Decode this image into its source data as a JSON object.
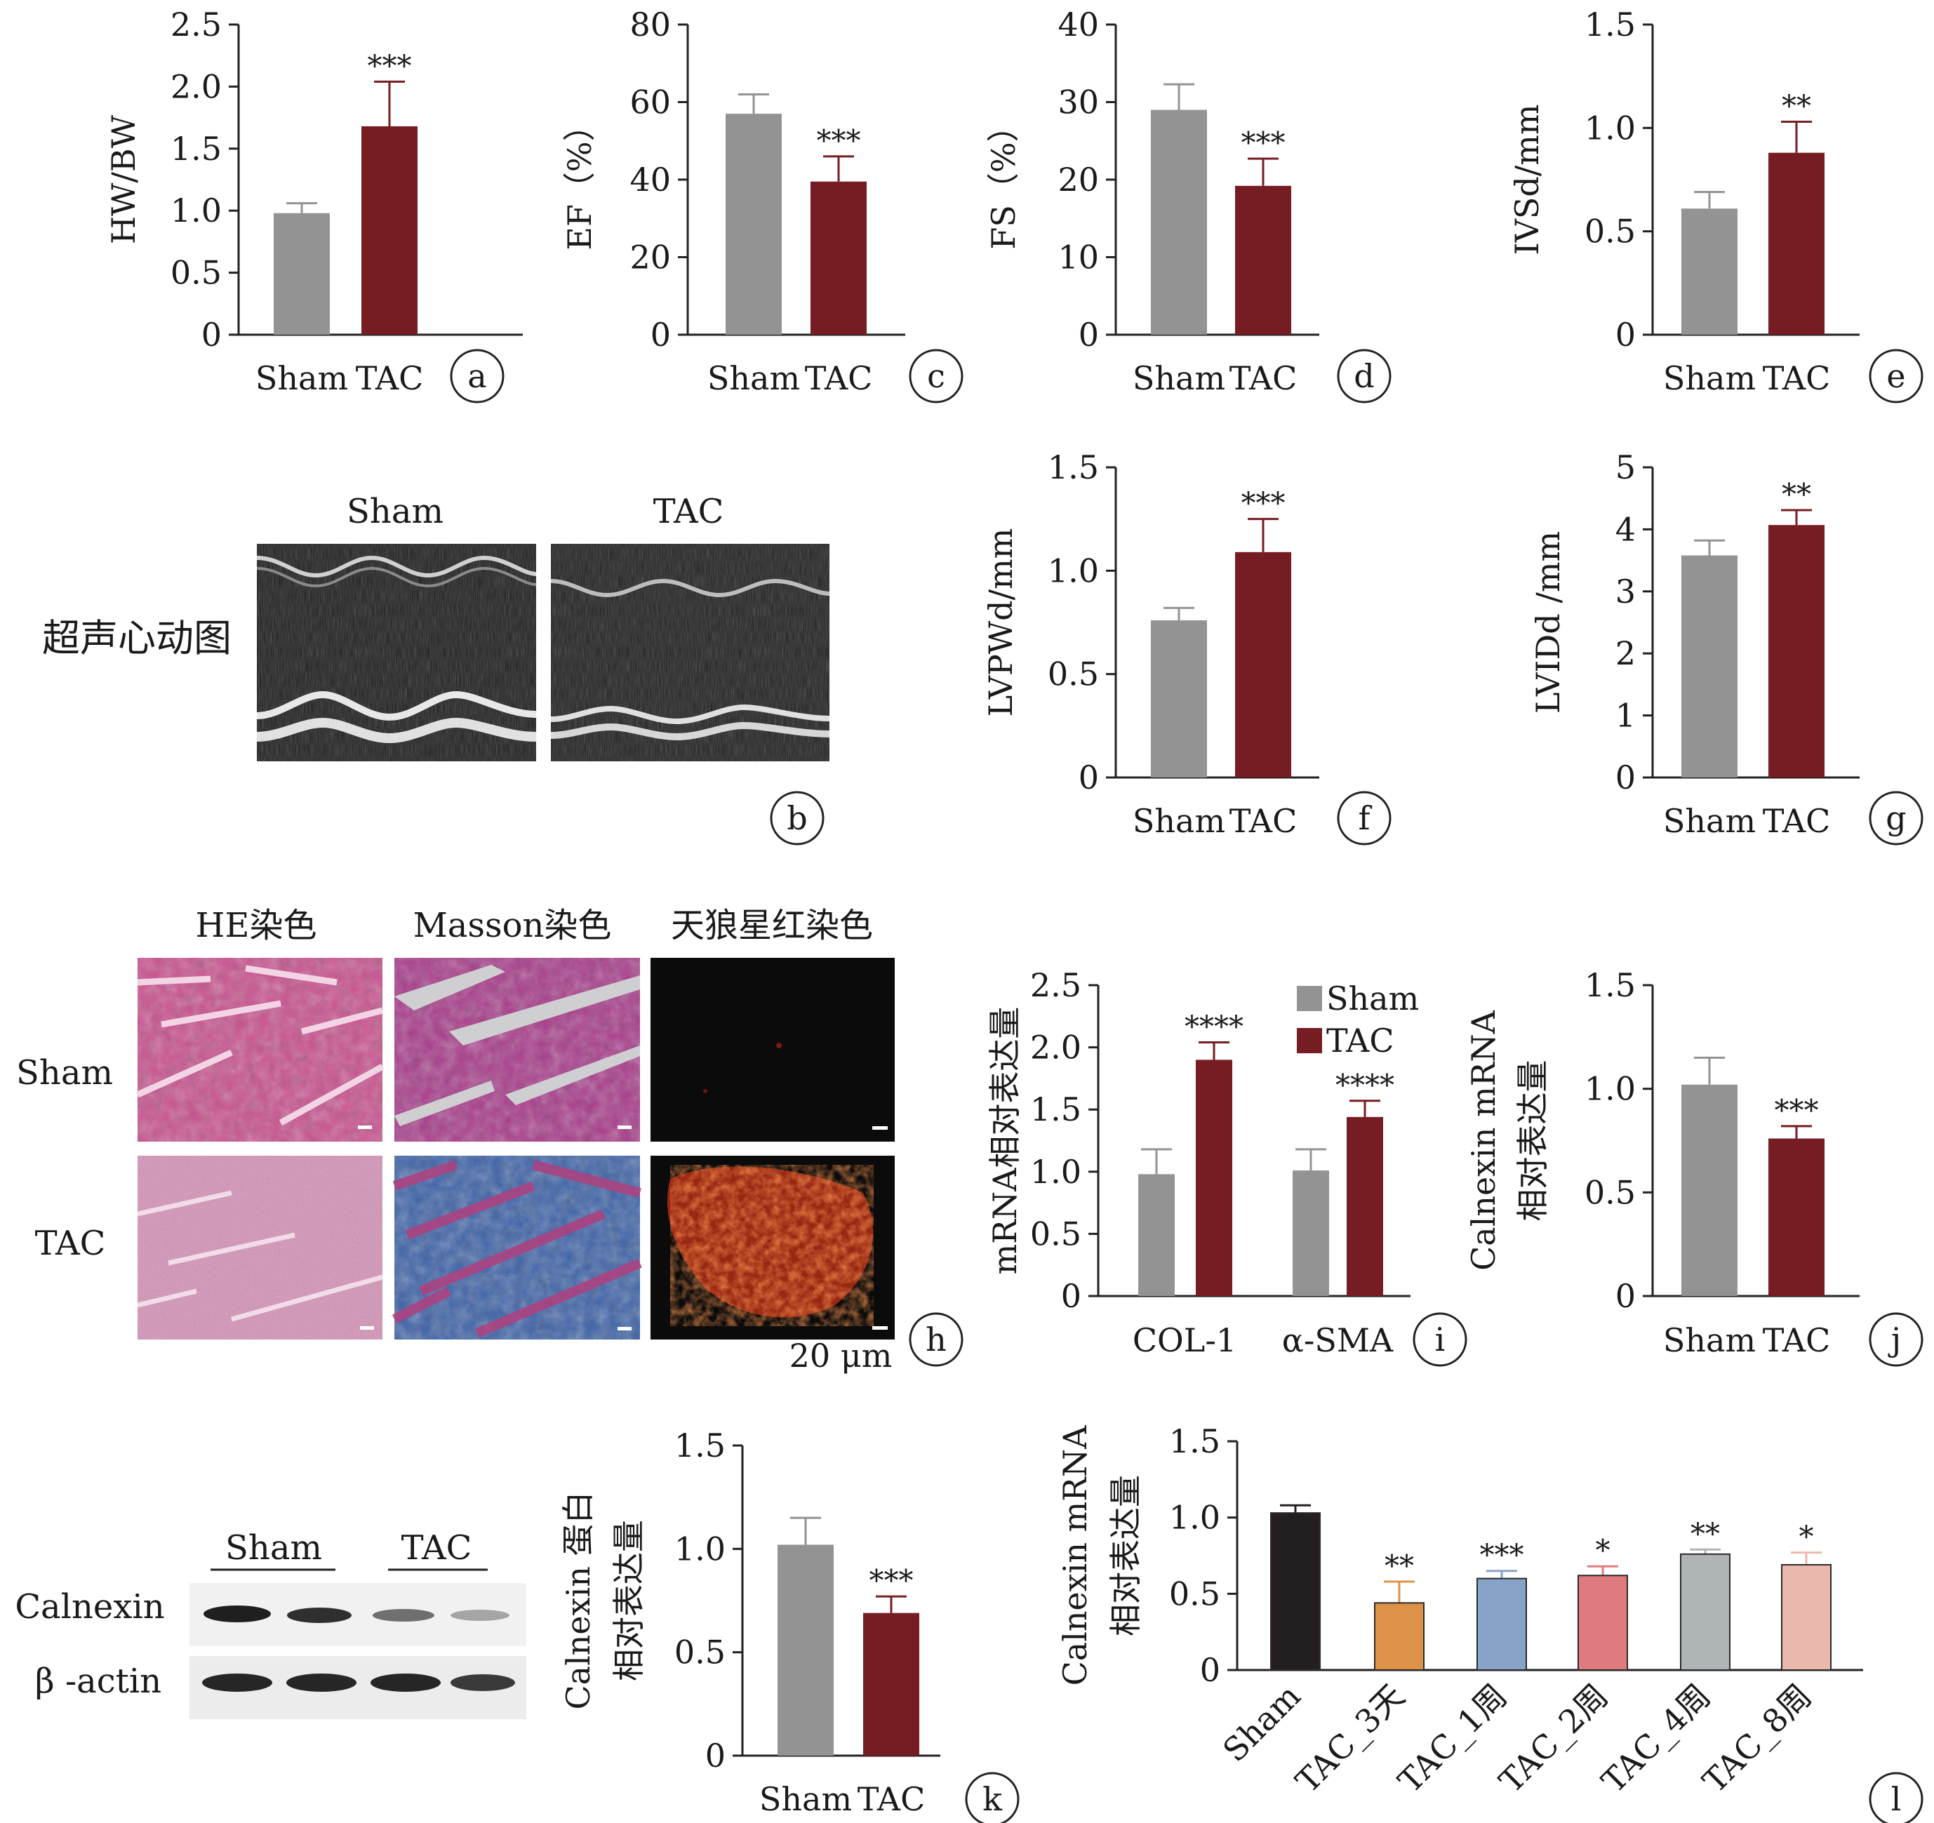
{
  "colors": {
    "sham": "#939393",
    "tac": "#761d23",
    "axis": "#222222",
    "series_l": [
      "#231f20",
      "#dd9248",
      "#87a3c8",
      "#df7b80",
      "#afb4b7",
      "#ebb8ad"
    ]
  },
  "chart_data": [
    {
      "id": "a",
      "type": "bar",
      "panel_label": "a",
      "categories": [
        "Sham",
        "TAC"
      ],
      "values": [
        0.98,
        1.68
      ],
      "errors": [
        0.08,
        0.36
      ],
      "significance": [
        "",
        "***"
      ],
      "ylabel": "HW/BW",
      "ylim": [
        0,
        2.5
      ],
      "yticks": [
        0,
        0.5,
        1.0,
        1.5,
        2.0,
        2.5
      ],
      "ytick_labels": [
        "0",
        "0.5",
        "1.0",
        "1.5",
        "2.0",
        "2.5"
      ]
    },
    {
      "id": "c",
      "type": "bar",
      "panel_label": "c",
      "categories": [
        "Sham",
        "TAC"
      ],
      "values": [
        57,
        39.5
      ],
      "errors": [
        5,
        6.5
      ],
      "significance": [
        "",
        "***"
      ],
      "ylabel": "EF（%）",
      "ylim": [
        0,
        80
      ],
      "yticks": [
        0,
        20,
        40,
        60,
        80
      ],
      "ytick_labels": [
        "0",
        "20",
        "40",
        "60",
        "80"
      ]
    },
    {
      "id": "d",
      "type": "bar",
      "panel_label": "d",
      "categories": [
        "Sham",
        "TAC"
      ],
      "values": [
        29,
        19.2
      ],
      "errors": [
        3.3,
        3.5
      ],
      "significance": [
        "",
        "***"
      ],
      "ylabel": "FS（%）",
      "ylim": [
        0,
        40
      ],
      "yticks": [
        0,
        10,
        20,
        30,
        40
      ],
      "ytick_labels": [
        "0",
        "10",
        "20",
        "30",
        "40"
      ]
    },
    {
      "id": "e",
      "type": "bar",
      "panel_label": "e",
      "categories": [
        "Sham",
        "TAC"
      ],
      "values": [
        0.61,
        0.88
      ],
      "errors": [
        0.08,
        0.15
      ],
      "significance": [
        "",
        "**"
      ],
      "ylabel": "IVSd/mm",
      "ylim": [
        0,
        1.5
      ],
      "yticks": [
        0,
        0.5,
        1.0,
        1.5
      ],
      "ytick_labels": [
        "0",
        "0.5",
        "1.0",
        "1.5"
      ]
    },
    {
      "id": "f",
      "type": "bar",
      "panel_label": "f",
      "categories": [
        "Sham",
        "TAC"
      ],
      "values": [
        0.76,
        1.09
      ],
      "errors": [
        0.06,
        0.16
      ],
      "significance": [
        "",
        "***"
      ],
      "ylabel": "LVPWd/mm",
      "ylim": [
        0,
        1.5
      ],
      "yticks": [
        0,
        0.5,
        1.0,
        1.5
      ],
      "ytick_labels": [
        "0",
        "0.5",
        "1.0",
        "1.5"
      ]
    },
    {
      "id": "g",
      "type": "bar",
      "panel_label": "g",
      "categories": [
        "Sham",
        "TAC"
      ],
      "values": [
        3.58,
        4.07
      ],
      "errors": [
        0.24,
        0.24
      ],
      "significance": [
        "",
        "**"
      ],
      "ylabel": "LVIDd /mm",
      "ylim": [
        0,
        5
      ],
      "yticks": [
        0,
        1,
        2,
        3,
        4,
        5
      ],
      "ytick_labels": [
        "0",
        "1",
        "2",
        "3",
        "4",
        "5"
      ]
    },
    {
      "id": "i",
      "type": "bar",
      "panel_label": "i",
      "categories": [
        "COL-1",
        "α-SMA"
      ],
      "series": [
        {
          "name": "Sham",
          "values": [
            0.98,
            1.01
          ],
          "errors": [
            0.2,
            0.17
          ],
          "significance": [
            "",
            ""
          ]
        },
        {
          "name": "TAC",
          "values": [
            1.9,
            1.44
          ],
          "errors": [
            0.14,
            0.13
          ],
          "significance": [
            "****",
            "****"
          ]
        }
      ],
      "ylabel": "mRNA相对表达量",
      "ylim": [
        0,
        2.5
      ],
      "yticks": [
        0,
        0.5,
        1.0,
        1.5,
        2.0,
        2.5
      ],
      "ytick_labels": [
        "0",
        "0.5",
        "1.0",
        "1.5",
        "2.0",
        "2.5"
      ],
      "legend": "top-right"
    },
    {
      "id": "j",
      "type": "bar",
      "panel_label": "j",
      "categories": [
        "Sham",
        "TAC"
      ],
      "values": [
        1.02,
        0.76
      ],
      "errors": [
        0.13,
        0.06
      ],
      "significance": [
        "",
        "***"
      ],
      "ylabel": [
        "Calnexin mRNA",
        "相对表达量"
      ],
      "ylim": [
        0,
        1.5
      ],
      "yticks": [
        0,
        0.5,
        1.0,
        1.5
      ],
      "ytick_labels": [
        "0",
        "0.5",
        "1.0",
        "1.5"
      ]
    },
    {
      "id": "k",
      "type": "bar",
      "panel_label": "k",
      "categories": [
        "Sham",
        "TAC"
      ],
      "values": [
        1.02,
        0.69
      ],
      "errors": [
        0.13,
        0.08
      ],
      "significance": [
        "",
        "***"
      ],
      "ylabel": [
        "Calnexin 蛋白",
        "相对表达量"
      ],
      "ylim": [
        0,
        1.5
      ],
      "yticks": [
        0,
        0.5,
        1.0,
        1.5
      ],
      "ytick_labels": [
        "0",
        "0.5",
        "1.0",
        "1.5"
      ]
    },
    {
      "id": "l",
      "type": "bar",
      "panel_label": "l",
      "categories": [
        "Sham",
        "TAC_3天",
        "TAC_1周",
        "TAC_2周",
        "TAC_4周",
        "TAC_8周"
      ],
      "values": [
        1.03,
        0.44,
        0.6,
        0.62,
        0.76,
        0.69
      ],
      "errors": [
        0.05,
        0.14,
        0.05,
        0.06,
        0.03,
        0.08
      ],
      "significance": [
        "",
        "**",
        "***",
        "*",
        "**",
        "*"
      ],
      "ylabel": [
        "Calnexin mRNA",
        "相对表达量"
      ],
      "ylim": [
        0,
        1.5
      ],
      "yticks": [
        0,
        0.5,
        1.0,
        1.5
      ],
      "ytick_labels": [
        "0",
        "0.5",
        "1.0",
        "1.5"
      ]
    }
  ],
  "panel_b": {
    "label": "b",
    "columns": [
      "Sham",
      "TAC"
    ],
    "row_label": "超声心动图"
  },
  "panel_h": {
    "label": "h",
    "columns": [
      "HE染色",
      "Masson染色",
      "天狼星红染色"
    ],
    "rows": [
      "Sham",
      "TAC"
    ],
    "scale_bar": "20 μm"
  },
  "panel_k_blot": {
    "groups": [
      "Sham",
      "TAC"
    ],
    "bands": [
      "Calnexin",
      "β -actin"
    ]
  }
}
